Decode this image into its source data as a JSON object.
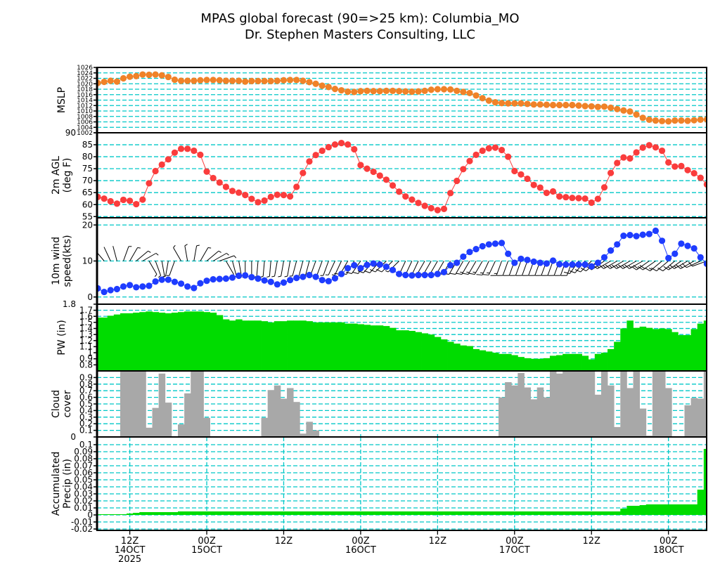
{
  "title": "MPAS global forecast (90=>25 km): Columbia_MO",
  "subtitle": "Dr. Stephen Masters Consulting, LLC",
  "chart_data": {
    "type": "line",
    "title": "MPAS global forecast (90=>25 km): Columbia_MO",
    "x_axis": {
      "start": "07Z 14OCT 2025",
      "step_hours": 1,
      "range_hours": [
        0,
        95
      ],
      "ticks": [
        {
          "hour": 5,
          "label": [
            "12Z",
            "14OCT",
            "2025"
          ]
        },
        {
          "hour": 17,
          "label": [
            "00Z",
            "15OCT"
          ]
        },
        {
          "hour": 29,
          "label": [
            "12Z"
          ]
        },
        {
          "hour": 41,
          "label": [
            "00Z",
            "16OCT"
          ]
        },
        {
          "hour": 53,
          "label": [
            "12Z"
          ]
        },
        {
          "hour": 65,
          "label": [
            "00Z",
            "17OCT"
          ]
        },
        {
          "hour": 77,
          "label": [
            "12Z"
          ]
        },
        {
          "hour": 89,
          "label": [
            "00Z",
            "18OCT"
          ]
        }
      ]
    },
    "panels": [
      {
        "name": "mslp",
        "ylabel": [
          "MSLP"
        ],
        "type": "line",
        "color": "#f08228",
        "ylim": [
          1002,
          1026
        ],
        "yticks": [
          "1002",
          "1004",
          "1006",
          "1008",
          "1010",
          "1012",
          "1014",
          "1016",
          "1018",
          "1020",
          "1022",
          "1024",
          "1026"
        ],
        "values": [
          1020.3,
          1020.7,
          1021.1,
          1020.8,
          1022.0,
          1022.6,
          1022.8,
          1023.4,
          1023.3,
          1023.4,
          1023.1,
          1022.5,
          1021.5,
          1021.1,
          1021.1,
          1021.1,
          1021.3,
          1021.4,
          1021.4,
          1021.3,
          1021.1,
          1021.1,
          1021.1,
          1020.8,
          1021.0,
          1021.0,
          1021.0,
          1021.0,
          1021.1,
          1021.3,
          1021.4,
          1021.4,
          1021.1,
          1020.6,
          1020.0,
          1019.3,
          1018.8,
          1018.1,
          1017.6,
          1017.1,
          1017.0,
          1017.3,
          1017.4,
          1017.3,
          1017.3,
          1017.4,
          1017.4,
          1017.3,
          1017.2,
          1017.1,
          1017.2,
          1017.4,
          1017.8,
          1018.0,
          1018.0,
          1017.9,
          1017.4,
          1017.0,
          1016.6,
          1015.7,
          1014.7,
          1013.8,
          1013.2,
          1012.9,
          1012.8,
          1012.8,
          1012.8,
          1012.6,
          1012.4,
          1012.4,
          1012.3,
          1012.2,
          1012.2,
          1012.2,
          1012.2,
          1012.0,
          1011.8,
          1011.7,
          1011.5,
          1011.6,
          1011.2,
          1010.7,
          1010.2,
          1009.8,
          1008.7,
          1007.5,
          1006.8,
          1006.5,
          1006.3,
          1006.2,
          1006.5,
          1006.5,
          1006.4,
          1006.6,
          1006.8,
          1006.9
        ]
      },
      {
        "name": "temperature",
        "ylabel": [
          "2m AGL",
          "(deg F)"
        ],
        "type": "line",
        "color": "#fa3c3c",
        "ylim": [
          54.5,
          90
        ],
        "yticks": [
          "55",
          "60",
          "65",
          "70",
          "75",
          "80",
          "85",
          "90"
        ],
        "values": [
          63.2,
          62.5,
          61.4,
          60.4,
          62.0,
          61.6,
          60.2,
          62.1,
          68.9,
          74.0,
          76.7,
          78.9,
          81.7,
          83.3,
          83.3,
          82.5,
          80.8,
          73.8,
          71.1,
          69.2,
          67.4,
          65.7,
          65.0,
          64.0,
          62.4,
          61.0,
          61.7,
          63.2,
          64.1,
          64.0,
          63.4,
          67.4,
          73.2,
          78.0,
          80.7,
          82.5,
          84.0,
          85.1,
          85.7,
          85.1,
          83.1,
          76.5,
          75.0,
          73.7,
          72.1,
          70.4,
          68.0,
          65.4,
          63.4,
          62.1,
          60.7,
          59.5,
          58.5,
          57.7,
          58.2,
          64.8,
          69.9,
          74.8,
          78.2,
          80.8,
          82.5,
          83.5,
          83.8,
          82.8,
          80.0,
          74.0,
          72.6,
          70.8,
          68.2,
          67.1,
          64.9,
          65.5,
          63.4,
          63.1,
          62.8,
          62.7,
          62.5,
          60.8,
          62.4,
          67.2,
          73.2,
          77.4,
          79.7,
          79.3,
          81.8,
          83.8,
          84.8,
          83.9,
          82.5,
          77.6,
          75.9,
          76.1,
          74.4,
          73.1,
          71.2,
          68.4
        ]
      },
      {
        "name": "wind",
        "ylabel": [
          "10m wind",
          "speed(kts)"
        ],
        "type": "line",
        "color": "#1e3cff",
        "ylim": [
          -2,
          22
        ],
        "yticks": [
          "0",
          "10",
          "20"
        ],
        "barb_level": 10,
        "values": [
          2.4,
          1.4,
          1.9,
          2.2,
          2.9,
          3.3,
          2.7,
          2.9,
          3.1,
          4.3,
          4.8,
          4.8,
          4.2,
          3.7,
          2.9,
          2.5,
          3.8,
          4.5,
          4.9,
          5.0,
          5.1,
          5.4,
          5.9,
          6.0,
          5.5,
          5.1,
          4.6,
          4.2,
          3.5,
          4.0,
          4.7,
          5.3,
          5.6,
          6.1,
          5.6,
          4.7,
          4.4,
          5.2,
          6.4,
          8.0,
          8.8,
          8.0,
          8.9,
          9.3,
          9.0,
          8.4,
          7.5,
          6.4,
          6.1,
          6.0,
          6.1,
          6.1,
          6.1,
          6.4,
          6.9,
          8.8,
          9.5,
          11.2,
          12.5,
          13.3,
          14.1,
          14.6,
          14.8,
          15.0,
          12.0,
          9.5,
          10.6,
          10.3,
          9.8,
          9.5,
          9.3,
          10.1,
          9.1,
          9.0,
          9.0,
          9.0,
          9.0,
          8.5,
          9.5,
          11.0,
          12.9,
          14.6,
          17.0,
          17.2,
          16.9,
          17.3,
          17.5,
          18.4,
          15.6,
          10.8,
          12.0,
          14.8,
          14.2,
          13.5,
          11.0,
          9.2
        ],
        "direction_deg": [
          300,
          320,
          335,
          345,
          20,
          30,
          50,
          60,
          150,
          160,
          170,
          190,
          200,
          330,
          350,
          10,
          30,
          50,
          60,
          70,
          150,
          165,
          170,
          180,
          180,
          185,
          185,
          185,
          190,
          190,
          190,
          195,
          195,
          195,
          200,
          200,
          200,
          205,
          205,
          210,
          210,
          215,
          215,
          220,
          220,
          225,
          225,
          225,
          205,
          205,
          205,
          210,
          210,
          210,
          210,
          210,
          210,
          210,
          210,
          210,
          210,
          205,
          205,
          200,
          200,
          200,
          200,
          200,
          200,
          200,
          200,
          200,
          200,
          200,
          200,
          215,
          220,
          225,
          230,
          235,
          240,
          240,
          240,
          240,
          240,
          240,
          235,
          235,
          230,
          230,
          230,
          235,
          240,
          240,
          245,
          250
        ]
      },
      {
        "name": "pw",
        "ylabel": [
          "PW (in)"
        ],
        "type": "bar",
        "color": "#00dc00",
        "ylim": [
          0.7,
          1.8
        ],
        "yticks": [
          "0.8",
          "0.9",
          "1",
          "1.1",
          "1.2",
          "1.3",
          "1.4",
          "1.5",
          "1.6",
          "1.7",
          "1.8"
        ],
        "values": [
          1.58,
          1.58,
          1.61,
          1.63,
          1.65,
          1.65,
          1.66,
          1.67,
          1.68,
          1.67,
          1.66,
          1.65,
          1.66,
          1.67,
          1.68,
          1.68,
          1.68,
          1.67,
          1.66,
          1.62,
          1.55,
          1.53,
          1.55,
          1.53,
          1.53,
          1.53,
          1.52,
          1.5,
          1.52,
          1.52,
          1.53,
          1.53,
          1.53,
          1.52,
          1.5,
          1.5,
          1.5,
          1.5,
          1.5,
          1.48,
          1.48,
          1.47,
          1.46,
          1.45,
          1.45,
          1.44,
          1.41,
          1.37,
          1.37,
          1.36,
          1.34,
          1.32,
          1.3,
          1.26,
          1.22,
          1.18,
          1.15,
          1.12,
          1.11,
          1.06,
          1.04,
          1.02,
          1.0,
          0.98,
          0.98,
          0.96,
          0.93,
          0.91,
          0.9,
          0.9,
          0.91,
          0.95,
          0.96,
          0.98,
          0.98,
          0.98,
          0.95,
          0.89,
          0.98,
          1.0,
          1.06,
          1.18,
          1.4,
          1.53,
          1.41,
          1.43,
          1.41,
          1.39,
          1.4,
          1.39,
          1.34,
          1.29,
          1.29,
          1.39,
          1.48,
          1.53
        ]
      },
      {
        "name": "cloud",
        "ylabel": [
          "Cloud",
          "cover"
        ],
        "type": "bar",
        "color": "#a8a8a8",
        "ylim": [
          0,
          1
        ],
        "yticks": [
          "0",
          "0.1",
          "0.2",
          "0.3",
          "0.4",
          "0.5",
          "0.6",
          "0.7",
          "0.8",
          "0.9"
        ],
        "values": [
          0,
          0,
          0,
          0,
          1,
          1,
          1,
          1,
          0.14,
          0.44,
          0.96,
          0.52,
          0,
          0.19,
          0.66,
          1,
          1,
          0.29,
          0,
          0,
          0,
          0,
          0,
          0,
          0,
          0,
          0.29,
          0.71,
          0.78,
          0.58,
          0.74,
          0.53,
          0.05,
          0.23,
          0.1,
          0,
          0,
          0,
          0,
          0,
          0,
          0,
          0,
          0,
          0,
          0,
          0,
          0,
          0,
          0,
          0,
          0,
          0,
          0,
          0,
          0,
          0,
          0,
          0,
          0,
          0,
          0,
          0,
          0.6,
          0.83,
          0.78,
          0.97,
          0.75,
          0.57,
          0.75,
          0.6,
          1,
          0.96,
          1,
          1,
          1,
          1,
          1,
          0.64,
          1,
          0.78,
          0.15,
          1,
          0.74,
          1,
          0.43,
          0.02,
          1,
          1,
          0.74,
          0,
          0,
          0.48,
          0.59,
          0.58,
          1
        ]
      },
      {
        "name": "precip",
        "ylabel": [
          "Accumulated",
          "Precip (in)"
        ],
        "type": "area",
        "color": "#00dc00",
        "ylim": [
          -0.022,
          0.111
        ],
        "yticks": [
          "-0.02",
          "-0.01",
          "0",
          "0.01",
          "0.02",
          "0.03",
          "0.04",
          "0.05",
          "0.06",
          "0.07",
          "0.08",
          "0.09",
          "0.1"
        ],
        "values": [
          0.001,
          0.001,
          0.001,
          0.001,
          0.001,
          0.002,
          0.003,
          0.004,
          0.004,
          0.004,
          0.004,
          0.004,
          0.004,
          0.005,
          0.005,
          0.005,
          0.005,
          0.005,
          0.005,
          0.005,
          0.005,
          0.005,
          0.005,
          0.005,
          0.005,
          0.005,
          0.005,
          0.005,
          0.005,
          0.005,
          0.005,
          0.005,
          0.005,
          0.005,
          0.005,
          0.005,
          0.005,
          0.005,
          0.005,
          0.005,
          0.005,
          0.005,
          0.005,
          0.005,
          0.005,
          0.005,
          0.005,
          0.005,
          0.005,
          0.005,
          0.005,
          0.005,
          0.005,
          0.005,
          0.005,
          0.005,
          0.005,
          0.005,
          0.005,
          0.005,
          0.005,
          0.005,
          0.005,
          0.005,
          0.005,
          0.005,
          0.005,
          0.005,
          0.005,
          0.005,
          0.005,
          0.005,
          0.005,
          0.005,
          0.005,
          0.005,
          0.005,
          0.005,
          0.005,
          0.005,
          0.005,
          0.005,
          0.009,
          0.013,
          0.013,
          0.014,
          0.015,
          0.015,
          0.015,
          0.015,
          0.015,
          0.015,
          0.015,
          0.015,
          0.036,
          0.094
        ]
      }
    ],
    "grid_color": "#00c8c8"
  }
}
